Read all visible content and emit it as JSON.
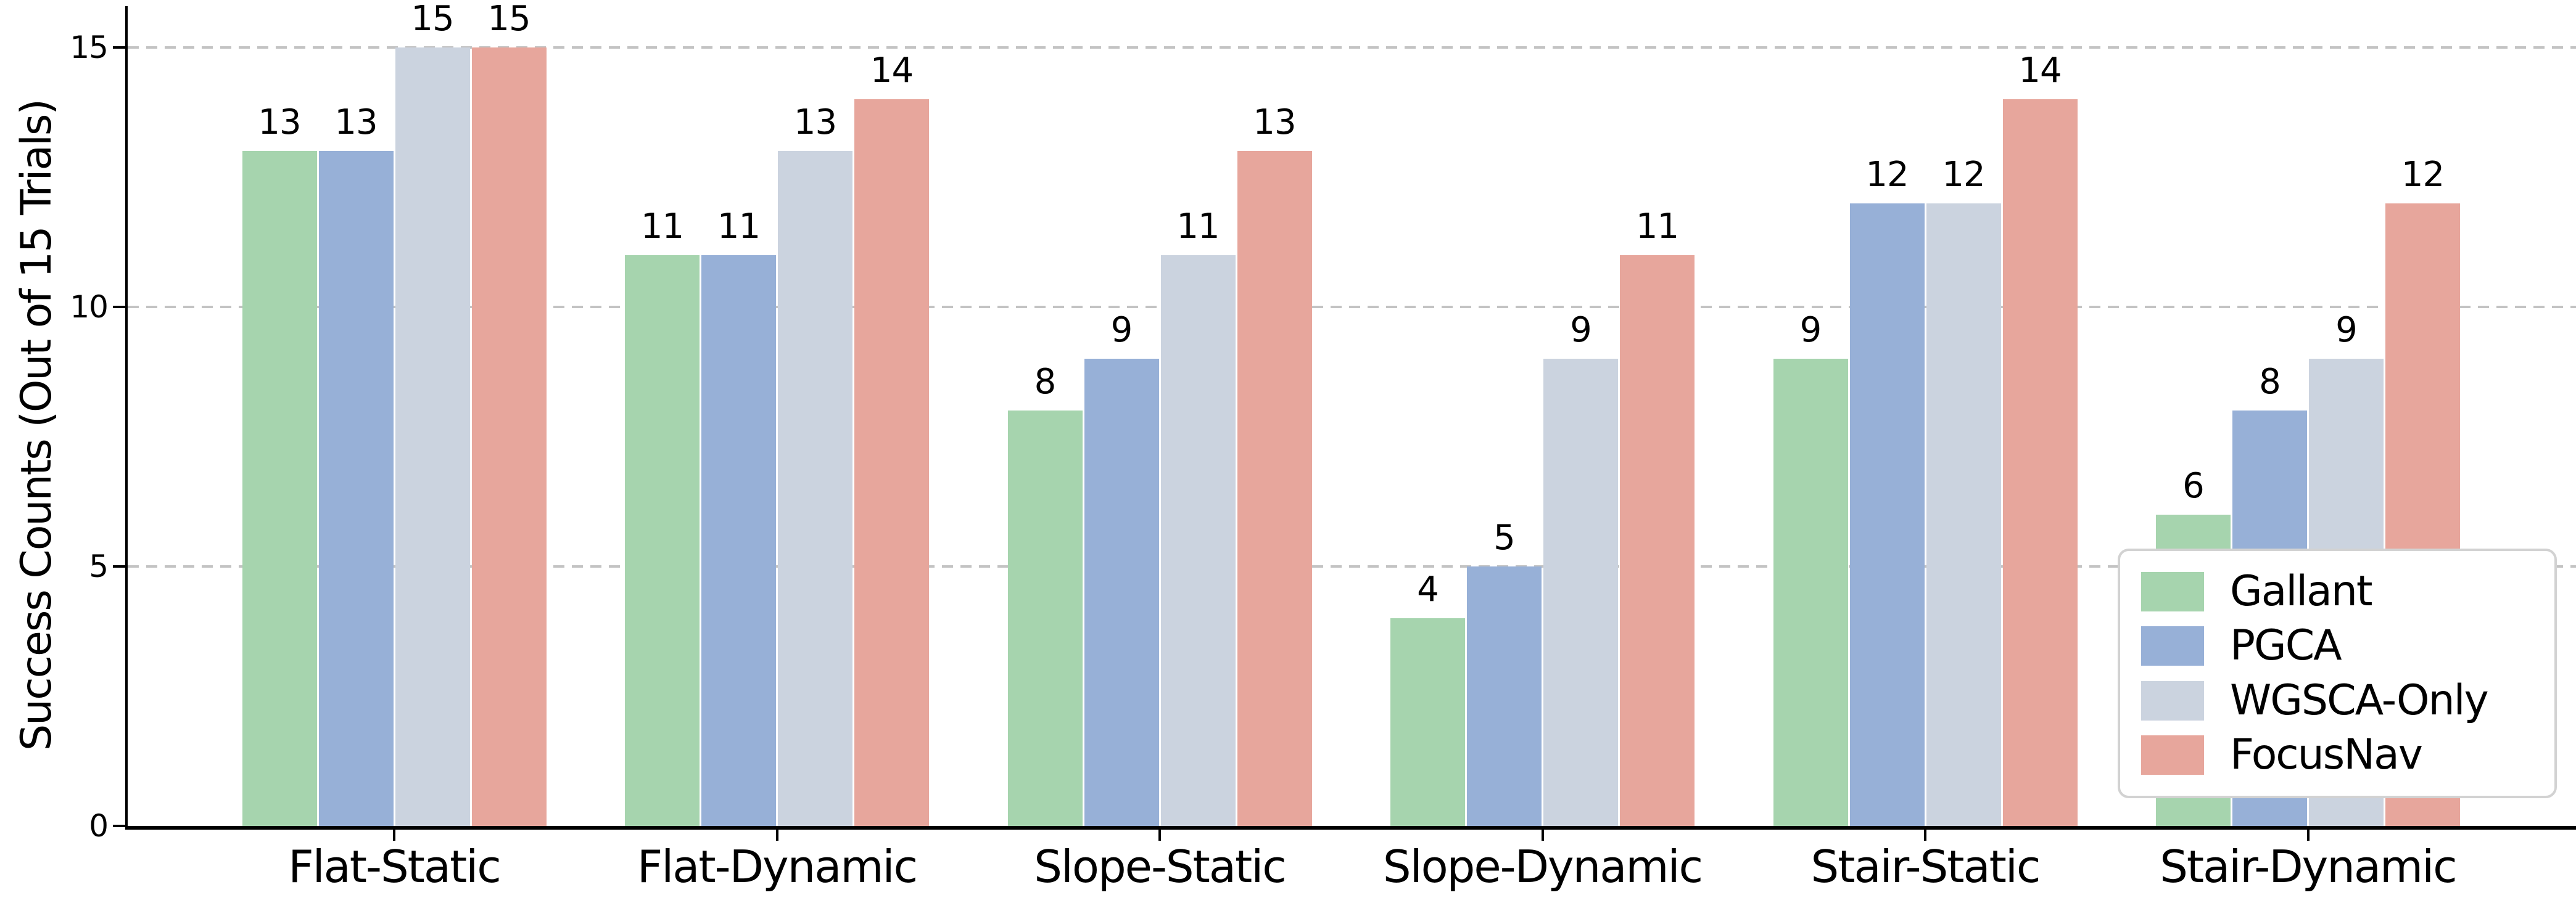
{
  "chart_data": {
    "type": "bar",
    "title": "",
    "xlabel": "",
    "ylabel": "Success Counts (Out of 15 Trials)",
    "categories": [
      "Flat-Static",
      "Flat-Dynamic",
      "Slope-Static",
      "Slope-Dynamic",
      "Stair-Static",
      "Stair-Dynamic"
    ],
    "series": [
      {
        "name": "Gallant",
        "color": "#a6d4ae",
        "values": [
          13,
          11,
          8,
          4,
          9,
          6
        ]
      },
      {
        "name": "PGCA",
        "color": "#97b0d7",
        "values": [
          13,
          11,
          9,
          5,
          12,
          8
        ]
      },
      {
        "name": "WGSCA-Only",
        "color": "#cbd3df",
        "values": [
          15,
          13,
          11,
          9,
          12,
          9
        ]
      },
      {
        "name": "FocusNav",
        "color": "#e7a69c",
        "values": [
          15,
          14,
          13,
          11,
          14,
          12
        ]
      }
    ],
    "bar_value_labels": true,
    "yticks": [
      0,
      5,
      10,
      15
    ],
    "ylim": [
      0,
      15.8
    ],
    "grid": {
      "axis": "y",
      "style": "dashed",
      "color": "#c3c3c3"
    },
    "legend": {
      "position": "lower right"
    },
    "axis_color": "#000000",
    "text_color": "#000000",
    "background_color": "#ffffff"
  }
}
